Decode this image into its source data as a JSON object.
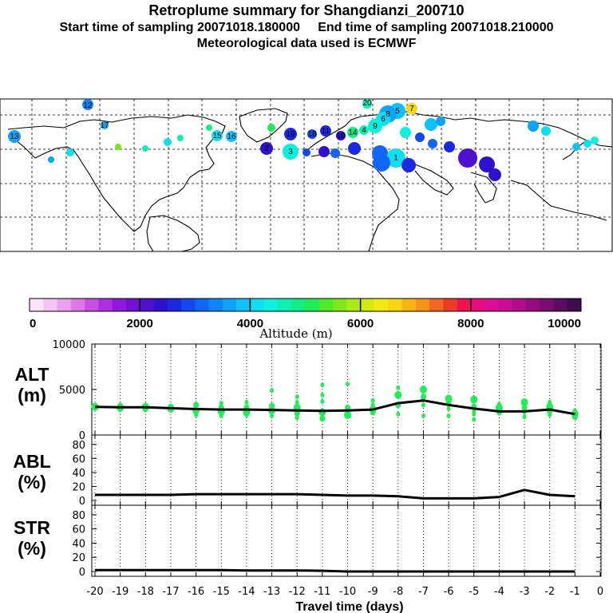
{
  "header": {
    "title": "Retroplume summary for Shangdianzi_200710",
    "subtitle_start": "Start time of sampling 20071018.180000",
    "subtitle_end": "End time of sampling 20071018.210000",
    "met_line": "Meteorological data used is ECMWF"
  },
  "colorbar": {
    "label": "Altitude (m)",
    "tick_labels": [
      "0",
      "2000",
      "4000",
      "6000",
      "8000",
      "10000"
    ],
    "colors": [
      "#fbe3fb",
      "#f4c6f4",
      "#eaa0ef",
      "#de78e6",
      "#c94fe0",
      "#ad2ede",
      "#9018da",
      "#7410d4",
      "#5010cd",
      "#2c12cd",
      "#1a28e0",
      "#1547f0",
      "#1266f6",
      "#1185f8",
      "#0fa3f8",
      "#0ec2f7",
      "#0edff2",
      "#0cf1dc",
      "#0cf0b4",
      "#10ee84",
      "#22eb54",
      "#4cea2a",
      "#7ce81a",
      "#aaea14",
      "#d2ea10",
      "#f2ea10",
      "#f8d610",
      "#f8b610",
      "#f6941a",
      "#f36820",
      "#ef3a26",
      "#ee1252",
      "#e80c7e",
      "#dc0c98",
      "#c80c98",
      "#b00c8c",
      "#940c80",
      "#780c70",
      "#5c0c60",
      "#400c50"
    ]
  },
  "map_labels": [
    "12",
    "20",
    "13",
    "17",
    "15",
    "16",
    "7",
    "5",
    "8",
    "6",
    "9",
    "4",
    "14",
    "10",
    "11",
    "18",
    "19",
    "2",
    "3",
    "1"
  ],
  "chart_data": [
    {
      "type": "line",
      "panel": "ALT",
      "ylabel": "ALT (m)",
      "y_ticks": [
        "10000",
        "5000",
        "0"
      ],
      "ylim": [
        0,
        10000
      ],
      "x": [
        -20,
        -19,
        -18,
        -17,
        -16,
        -15,
        -14,
        -13,
        -12,
        -11,
        -10,
        -9,
        -8,
        -7,
        -6,
        -5,
        -4,
        -3,
        -2,
        -1
      ],
      "series": [
        {
          "name": "mean altitude",
          "values": [
            3100,
            3050,
            3050,
            2950,
            2850,
            2800,
            2800,
            2750,
            2700,
            2650,
            2700,
            2800,
            3500,
            3800,
            3300,
            2900,
            2600,
            2600,
            2800,
            2300
          ]
        }
      ],
      "scatter": [
        {
          "x": -20,
          "y": [
            3100,
            3000,
            3250
          ]
        },
        {
          "x": -19,
          "y": [
            3000,
            3200,
            2900
          ]
        },
        {
          "x": -18,
          "y": [
            3100,
            2850,
            3300
          ]
        },
        {
          "x": -17,
          "y": [
            2900,
            3100,
            2700
          ]
        },
        {
          "x": -16,
          "y": [
            2700,
            3300,
            2200
          ]
        },
        {
          "x": -15,
          "y": [
            2600,
            3000,
            3500,
            2100
          ]
        },
        {
          "x": -14,
          "y": [
            2500,
            3000,
            3600,
            2200
          ]
        },
        {
          "x": -13,
          "y": [
            2700,
            3200,
            2100,
            4900
          ]
        },
        {
          "x": -12,
          "y": [
            3000,
            2400,
            3600,
            4200,
            1900
          ]
        },
        {
          "x": -11,
          "y": [
            2500,
            1800,
            3700,
            4400,
            5500
          ]
        },
        {
          "x": -10,
          "y": [
            2200,
            3000,
            2700,
            5600
          ]
        },
        {
          "x": -9,
          "y": [
            2800,
            2500,
            3300,
            3800
          ]
        },
        {
          "x": -8,
          "y": [
            4400,
            3300,
            2300,
            5200
          ]
        },
        {
          "x": -7,
          "y": [
            5000,
            4200,
            2100,
            3300
          ]
        },
        {
          "x": -6,
          "y": [
            4000,
            3500,
            2100,
            2900
          ]
        },
        {
          "x": -5,
          "y": [
            3900,
            3100,
            2600,
            1700,
            2300
          ]
        },
        {
          "x": -4,
          "y": [
            3000,
            2500,
            3400
          ]
        },
        {
          "x": -3,
          "y": [
            3600,
            3000,
            2500,
            2000
          ]
        },
        {
          "x": -2,
          "y": [
            3100,
            2600,
            2200,
            3600
          ]
        },
        {
          "x": -1,
          "y": [
            2300,
            2000,
            2700
          ]
        }
      ]
    },
    {
      "type": "line",
      "panel": "ABL",
      "ylabel": "ABL (%)",
      "y_ticks": [
        "80",
        "60",
        "40",
        "20",
        "0"
      ],
      "ylim": [
        0,
        90
      ],
      "x": [
        -20,
        -19,
        -18,
        -17,
        -16,
        -15,
        -14,
        -13,
        -12,
        -11,
        -10,
        -9,
        -8,
        -7,
        -6,
        -5,
        -4,
        -3,
        -2,
        -1
      ],
      "series": [
        {
          "name": "fraction in boundary layer",
          "values": [
            8,
            8,
            8,
            8,
            9,
            9,
            9,
            9,
            9,
            8,
            7,
            7,
            6,
            3,
            3,
            3,
            5,
            15,
            8,
            6
          ]
        }
      ]
    },
    {
      "type": "line",
      "panel": "STR",
      "ylabel": "STR (%)",
      "y_ticks": [
        "80",
        "60",
        "40",
        "20",
        "0"
      ],
      "ylim": [
        0,
        90
      ],
      "x": [
        -20,
        -19,
        -18,
        -17,
        -16,
        -15,
        -14,
        -13,
        -12,
        -11,
        -10,
        -9,
        -8,
        -7,
        -6,
        -5,
        -4,
        -3,
        -2,
        -1
      ],
      "series": [
        {
          "name": "fraction in stratosphere",
          "values": [
            2,
            2,
            2,
            2,
            2,
            2,
            1.5,
            1.5,
            1.5,
            1,
            0,
            0,
            0,
            0,
            0,
            0,
            0,
            0,
            0,
            0
          ]
        }
      ]
    }
  ],
  "x_axis": {
    "tick_labels": [
      "-20",
      "-19",
      "-18",
      "-17",
      "-16",
      "-15",
      "-14",
      "-13",
      "-12",
      "-11",
      "-10",
      "-9",
      "-8",
      "-7",
      "-6",
      "-5",
      "-4",
      "-3",
      "-2",
      "-1",
      "0"
    ],
    "xlabel": "Travel time (days)"
  }
}
